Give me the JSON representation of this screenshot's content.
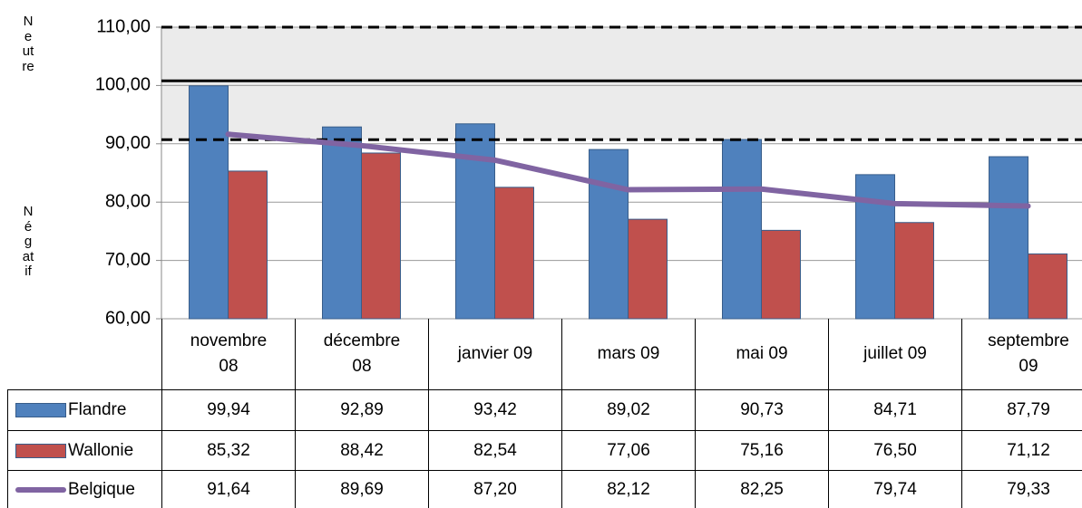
{
  "chart_data": {
    "type": "bar",
    "axis_labels": [
      "Neutre",
      "Négatif"
    ],
    "categories": [
      "novembre 08",
      "décembre 08",
      "janvier 09",
      "mars 09",
      "mai 09",
      "juillet 09",
      "septembre 09"
    ],
    "series": [
      {
        "name": "Flandre",
        "type": "bar",
        "color": "#4f81bd",
        "values": [
          99.94,
          92.89,
          93.42,
          89.02,
          90.73,
          84.71,
          87.79
        ],
        "value_labels": [
          "99,94",
          "92,89",
          "93,42",
          "89,02",
          "90,73",
          "84,71",
          "87,79"
        ]
      },
      {
        "name": "Wallonie",
        "type": "bar",
        "color": "#c0504d",
        "values": [
          85.32,
          88.42,
          82.54,
          77.06,
          75.16,
          76.5,
          71.12
        ],
        "value_labels": [
          "85,32",
          "88,42",
          "82,54",
          "77,06",
          "75,16",
          "76,50",
          "71,12"
        ]
      },
      {
        "name": "Belgique",
        "type": "line",
        "color": "#8064a2",
        "values": [
          91.64,
          89.69,
          87.2,
          82.12,
          82.25,
          79.74,
          79.33
        ],
        "value_labels": [
          "91,64",
          "89,69",
          "87,20",
          "82,12",
          "82,25",
          "79,74",
          "79,33"
        ]
      }
    ],
    "ylim": [
      60,
      110
    ],
    "yticks": [
      {
        "value": 60,
        "label": "60,00"
      },
      {
        "value": 70,
        "label": "70,00"
      },
      {
        "value": 80,
        "label": "80,00"
      },
      {
        "value": 90,
        "label": "90,00"
      },
      {
        "value": 100,
        "label": "100,00"
      },
      {
        "value": 110,
        "label": "110,00"
      }
    ],
    "grid": true,
    "reference_lines": [
      {
        "value": 110,
        "style": "dashed"
      },
      {
        "value": 100.8,
        "style": "solid"
      },
      {
        "value": 90.7,
        "style": "dashed"
      }
    ],
    "shaded_band": [
      90.7,
      110
    ],
    "data_table": true
  }
}
